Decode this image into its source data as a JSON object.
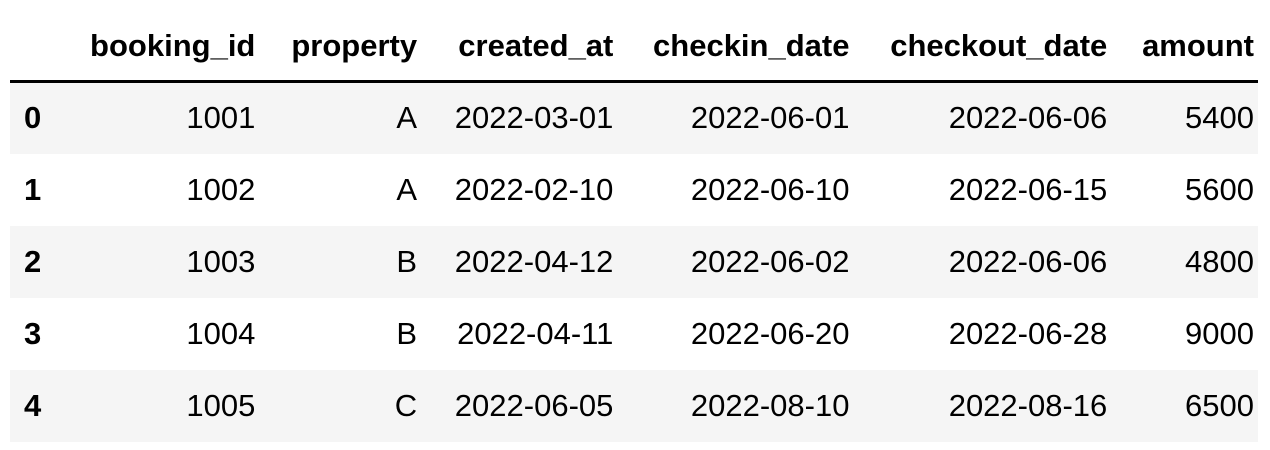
{
  "table": {
    "index_header": "",
    "columns": [
      "booking_id",
      "property",
      "created_at",
      "checkin_date",
      "checkout_date",
      "amount"
    ],
    "rows": [
      {
        "index": "0",
        "cells": [
          "1001",
          "A",
          "2022-03-01",
          "2022-06-01",
          "2022-06-06",
          "5400"
        ]
      },
      {
        "index": "1",
        "cells": [
          "1002",
          "A",
          "2022-02-10",
          "2022-06-10",
          "2022-06-15",
          "5600"
        ]
      },
      {
        "index": "2",
        "cells": [
          "1003",
          "B",
          "2022-04-12",
          "2022-06-02",
          "2022-06-06",
          "4800"
        ]
      },
      {
        "index": "3",
        "cells": [
          "1004",
          "B",
          "2022-04-11",
          "2022-06-20",
          "2022-06-28",
          "9000"
        ]
      },
      {
        "index": "4",
        "cells": [
          "1005",
          "C",
          "2022-06-05",
          "2022-08-10",
          "2022-08-16",
          "6500"
        ]
      }
    ]
  }
}
